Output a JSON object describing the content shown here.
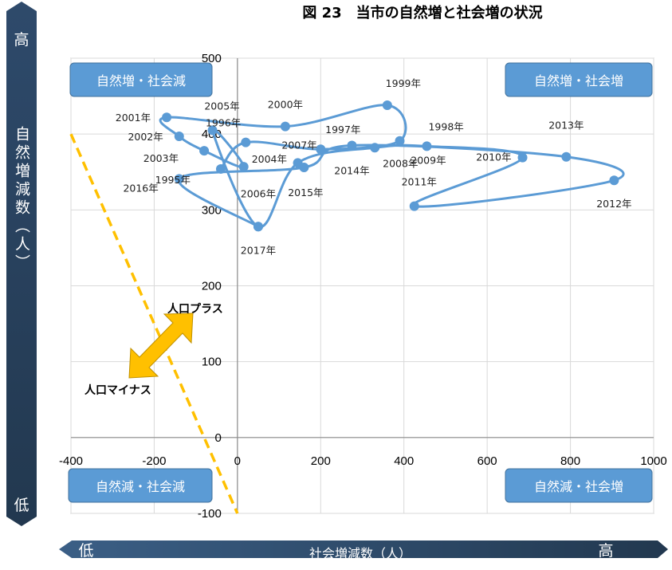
{
  "title": "図 23　当市の自然増と社会増の状況",
  "y_axis_bar": {
    "high": "高",
    "label": "自然増減数（人）",
    "low": "低"
  },
  "x_axis_bar": {
    "low": "低",
    "label": "社会増減数（人）",
    "high": "高"
  },
  "quadrants": {
    "top_left": "自然増・社会減",
    "top_right": "自然増・社会増",
    "bottom_left": "自然減・社会減",
    "bottom_right": "自然減・社会増"
  },
  "arrow": {
    "plus": "人口プラス",
    "minus": "人口マイナス"
  },
  "colors": {
    "series": "#5B9BD5",
    "box": "#5B9BD5",
    "bar": "#2E4A6B",
    "dashed": "#FFC000",
    "arrow": "#FFC000"
  },
  "chart_data": {
    "type": "scatter",
    "xlim": [
      -400,
      1000
    ],
    "ylim": [
      -100,
      500
    ],
    "x_ticks": [
      -400,
      -200,
      0,
      200,
      400,
      600,
      800,
      1000
    ],
    "y_ticks": [
      -100,
      0,
      100,
      200,
      300,
      400,
      500
    ],
    "grid": true,
    "points": [
      {
        "label": "1995年",
        "x": -40,
        "y": 354
      },
      {
        "label": "1996年",
        "x": 20,
        "y": 389
      },
      {
        "label": "1997年",
        "x": 200,
        "y": 380
      },
      {
        "label": "1998年",
        "x": 390,
        "y": 391
      },
      {
        "label": "1999年",
        "x": 360,
        "y": 438
      },
      {
        "label": "2000年",
        "x": 115,
        "y": 410
      },
      {
        "label": "2001年",
        "x": -170,
        "y": 422
      },
      {
        "label": "2002年",
        "x": -140,
        "y": 397
      },
      {
        "label": "2003年",
        "x": -80,
        "y": 378
      },
      {
        "label": "2004年",
        "x": 15,
        "y": 357
      },
      {
        "label": "2005年",
        "x": -60,
        "y": 405
      },
      {
        "label": "2006年",
        "x": 50,
        "y": 278
      },
      {
        "label": "2007年",
        "x": 145,
        "y": 362
      },
      {
        "label": "2008年",
        "x": 330,
        "y": 382
      },
      {
        "label": "2009年",
        "x": 455,
        "y": 384
      },
      {
        "label": "2010年",
        "x": 685,
        "y": 369
      },
      {
        "label": "2011年",
        "x": 425,
        "y": 305
      },
      {
        "label": "2012年",
        "x": 905,
        "y": 339
      },
      {
        "label": "2013年",
        "x": 790,
        "y": 370
      },
      {
        "label": "2014年",
        "x": 275,
        "y": 385
      },
      {
        "label": "2015年",
        "x": 160,
        "y": 356
      },
      {
        "label": "2016年",
        "x": -140,
        "y": 341
      },
      {
        "label": "2017年",
        "x": 50,
        "y": 278
      }
    ]
  }
}
